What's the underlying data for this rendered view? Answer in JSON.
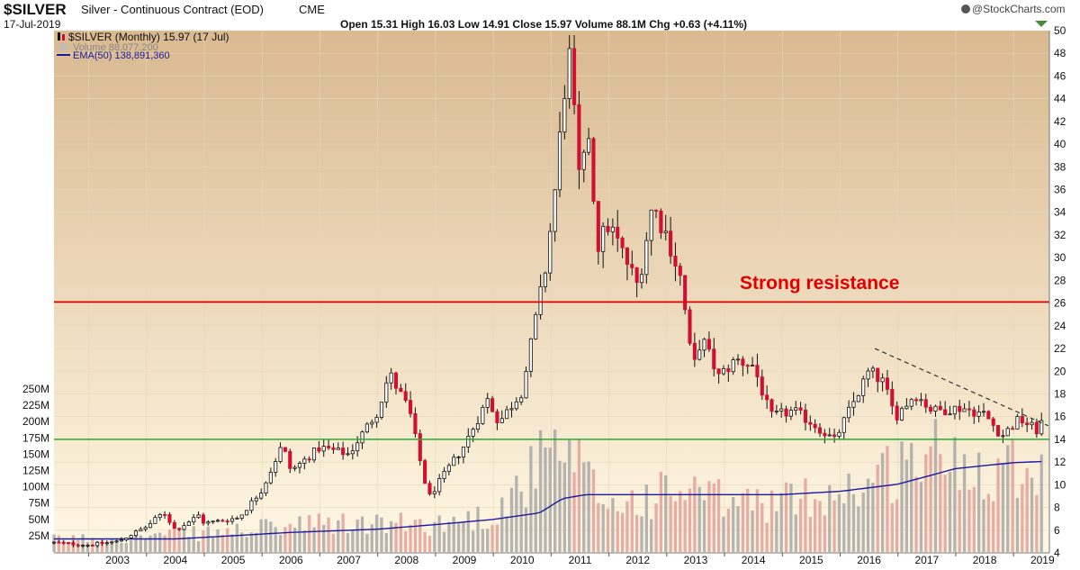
{
  "header": {
    "symbol": "$SILVER",
    "name": "Silver - Continuous Contract (EOD)",
    "exchange": "CME",
    "date": "17-Jul-2019",
    "ohlc_text": "Open 15.31  High 16.03  Low 14.91  Close 15.97  Volume 88.1M  Chg +0.63 (+4.11%)",
    "watermark": "@StockCharts.com"
  },
  "legend": {
    "price": "$SILVER (Monthly) 15.97 (17 Jul)",
    "volume": "Volume 88,077,200",
    "ema": "EMA(50) 138,891,360"
  },
  "annotation": "Strong resistance",
  "colors": {
    "up": "#111111",
    "down": "#d01030",
    "resistance": "#e00000",
    "support": "#2ea82e",
    "ema": "#1a1aa0",
    "volume_up": "#a8a8a8",
    "volume_down": "#e3a09a",
    "bg_top": "#d9b990",
    "bg_bottom": "#fff8e4"
  },
  "chart_data": {
    "type": "candlestick",
    "interval": "monthly",
    "title": "$SILVER Silver - Continuous Contract (EOD) CME",
    "x_ticks": [
      "2003",
      "2004",
      "2005",
      "2006",
      "2007",
      "2008",
      "2009",
      "2010",
      "2011",
      "2012",
      "2013",
      "2014",
      "2015",
      "2016",
      "2017",
      "2018",
      "2019"
    ],
    "y_ticks": [
      4,
      6,
      8,
      10,
      12,
      14,
      16,
      18,
      20,
      22,
      24,
      26,
      28,
      30,
      32,
      34,
      36,
      38,
      40,
      42,
      44,
      46,
      48,
      50
    ],
    "ylim": [
      4,
      50
    ],
    "volume_ticks": [
      "25M",
      "50M",
      "75M",
      "100M",
      "125M",
      "150M",
      "175M",
      "200M",
      "225M",
      "250M"
    ],
    "volume_ylim": [
      0,
      250
    ],
    "horizontal_lines": [
      {
        "name": "Strong resistance",
        "value": 26.1
      },
      {
        "name": "support",
        "value": 14.0
      }
    ],
    "trendline": {
      "from": {
        "date": "2016.6",
        "value": 22.0
      },
      "to": {
        "date": "2019.6",
        "value": 15.2
      }
    },
    "close_anchors": [
      {
        "date": 2002.4,
        "close": 4.9
      },
      {
        "date": 2003.0,
        "close": 4.7
      },
      {
        "date": 2003.5,
        "close": 5.0
      },
      {
        "date": 2004.0,
        "close": 6.3
      },
      {
        "date": 2004.3,
        "close": 7.6
      },
      {
        "date": 2004.5,
        "close": 6.0
      },
      {
        "date": 2004.9,
        "close": 7.3
      },
      {
        "date": 2005.0,
        "close": 6.6
      },
      {
        "date": 2005.6,
        "close": 7.1
      },
      {
        "date": 2006.0,
        "close": 9.6
      },
      {
        "date": 2006.35,
        "close": 13.5
      },
      {
        "date": 2006.5,
        "close": 11.2
      },
      {
        "date": 2007.0,
        "close": 13.3
      },
      {
        "date": 2007.5,
        "close": 12.7
      },
      {
        "date": 2008.0,
        "close": 16.5
      },
      {
        "date": 2008.2,
        "close": 19.8
      },
      {
        "date": 2008.55,
        "close": 16.5
      },
      {
        "date": 2008.8,
        "close": 10.5
      },
      {
        "date": 2008.9,
        "close": 9.0
      },
      {
        "date": 2009.5,
        "close": 13.5
      },
      {
        "date": 2009.9,
        "close": 17.5
      },
      {
        "date": 2010.1,
        "close": 15.5
      },
      {
        "date": 2010.5,
        "close": 18.3
      },
      {
        "date": 2010.9,
        "close": 29.0
      },
      {
        "date": 2011.05,
        "close": 35.0
      },
      {
        "date": 2011.3,
        "close": 48.6
      },
      {
        "date": 2011.5,
        "close": 36.0
      },
      {
        "date": 2011.65,
        "close": 41.0
      },
      {
        "date": 2011.8,
        "close": 31.0
      },
      {
        "date": 2012.0,
        "close": 33.0
      },
      {
        "date": 2012.5,
        "close": 27.5
      },
      {
        "date": 2012.75,
        "close": 34.6
      },
      {
        "date": 2013.0,
        "close": 32.0
      },
      {
        "date": 2013.25,
        "close": 28.0
      },
      {
        "date": 2013.45,
        "close": 20.0
      },
      {
        "date": 2013.6,
        "close": 23.0
      },
      {
        "date": 2013.9,
        "close": 19.5
      },
      {
        "date": 2014.2,
        "close": 21.0
      },
      {
        "date": 2014.5,
        "close": 20.5
      },
      {
        "date": 2014.8,
        "close": 16.0
      },
      {
        "date": 2015.2,
        "close": 16.5
      },
      {
        "date": 2015.5,
        "close": 15.5
      },
      {
        "date": 2015.9,
        "close": 13.9
      },
      {
        "date": 2016.5,
        "close": 20.0
      },
      {
        "date": 2016.75,
        "close": 19.0
      },
      {
        "date": 2016.95,
        "close": 16.0
      },
      {
        "date": 2017.3,
        "close": 18.0
      },
      {
        "date": 2017.6,
        "close": 16.5
      },
      {
        "date": 2018.1,
        "close": 16.8
      },
      {
        "date": 2018.5,
        "close": 16.2
      },
      {
        "date": 2018.8,
        "close": 14.3
      },
      {
        "date": 2019.1,
        "close": 15.8
      },
      {
        "date": 2019.4,
        "close": 14.8
      },
      {
        "date": 2019.54,
        "close": 15.97
      }
    ],
    "volume_anchors_millions": [
      {
        "date": 2002.4,
        "volume": 20
      },
      {
        "date": 2005.0,
        "volume": 30
      },
      {
        "date": 2007.0,
        "volume": 45
      },
      {
        "date": 2009.0,
        "volume": 45
      },
      {
        "date": 2010.0,
        "volume": 60
      },
      {
        "date": 2010.9,
        "volume": 150
      },
      {
        "date": 2011.2,
        "volume": 150
      },
      {
        "date": 2011.5,
        "volume": 130
      },
      {
        "date": 2012.0,
        "volume": 75
      },
      {
        "date": 2013.3,
        "volume": 100
      },
      {
        "date": 2014.0,
        "volume": 80
      },
      {
        "date": 2015.0,
        "volume": 80
      },
      {
        "date": 2016.5,
        "volume": 110
      },
      {
        "date": 2017.0,
        "volume": 140
      },
      {
        "date": 2017.5,
        "volume": 160
      },
      {
        "date": 2018.5,
        "volume": 140
      },
      {
        "date": 2019.5,
        "volume": 150
      }
    ],
    "ema_anchors_millions": [
      {
        "date": 2002.4,
        "ema": 20
      },
      {
        "date": 2004.5,
        "ema": 20
      },
      {
        "date": 2006.5,
        "ema": 30
      },
      {
        "date": 2008.0,
        "ema": 35
      },
      {
        "date": 2009.0,
        "ema": 42
      },
      {
        "date": 2010.0,
        "ema": 50
      },
      {
        "date": 2010.8,
        "ema": 60
      },
      {
        "date": 2011.2,
        "ema": 82
      },
      {
        "date": 2011.6,
        "ema": 88
      },
      {
        "date": 2015.0,
        "ema": 88
      },
      {
        "date": 2016.0,
        "ema": 93
      },
      {
        "date": 2017.0,
        "ema": 104
      },
      {
        "date": 2018.0,
        "ema": 128
      },
      {
        "date": 2019.0,
        "ema": 137
      },
      {
        "date": 2019.54,
        "ema": 138.9
      }
    ]
  }
}
